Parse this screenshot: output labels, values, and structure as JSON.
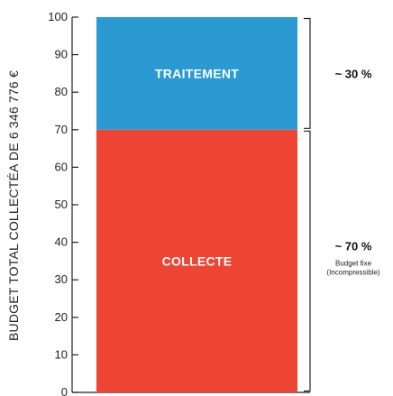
{
  "chart_data": {
    "type": "bar",
    "stacked": true,
    "ylabel": "BUDGET TOTAL COLLECTÉA DE 6 346 776 €",
    "ylim": [
      0,
      100
    ],
    "yticks": [
      0,
      10,
      20,
      30,
      40,
      50,
      60,
      70,
      80,
      90,
      100
    ],
    "series": [
      {
        "label": "COLLECTE",
        "value": 70,
        "color": "#ee4433",
        "bracket_text": "~ 70 %",
        "note_lines": [
          "Budget fixe",
          "(Incompressible)"
        ]
      },
      {
        "label": "TRAITEMENT",
        "value": 30,
        "color": "#2b9ad3",
        "bracket_text": "~ 30 %",
        "note_lines": []
      }
    ],
    "grid": false,
    "legend": "none"
  }
}
